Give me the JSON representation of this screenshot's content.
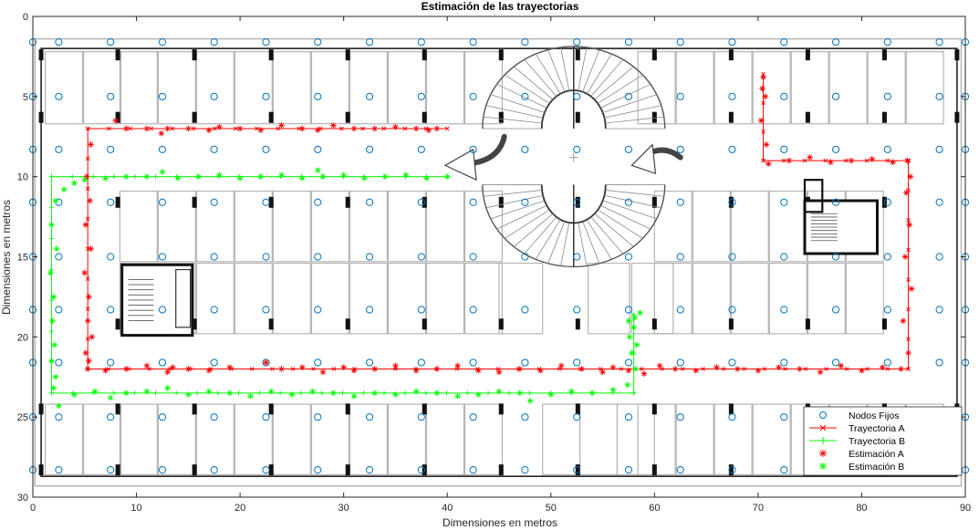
{
  "chart_data": {
    "type": "scatter",
    "title": "Estimación de las trayectorias",
    "xlabel": "Dimensiones en metros",
    "ylabel": "Dimensiones en metros",
    "xlim": [
      0,
      90
    ],
    "ylim": [
      0,
      30
    ],
    "y_reversed": true,
    "x_ticks": [
      0,
      10,
      20,
      30,
      40,
      50,
      60,
      70,
      80,
      90
    ],
    "y_ticks": [
      0,
      5,
      10,
      15,
      20,
      25,
      30
    ],
    "grid": false,
    "legend_position": "bottom-right",
    "background": "floor plan of a parking level",
    "colors": {
      "nodes": "#0072BD",
      "a": "#FF0000",
      "b": "#00FF00",
      "plan": "#000000"
    },
    "fixed_nodes_x": [
      0,
      2.5,
      7.5,
      12.5,
      17.5,
      22.5,
      27.5,
      32.5,
      37.5,
      42.5,
      47.5,
      52.5,
      57.5,
      62.5,
      67.5,
      72.5,
      77.5,
      82.5,
      87.5,
      90
    ],
    "fixed_nodes_y": [
      1.6,
      5,
      8.3,
      11.6,
      15,
      18.3,
      21.6,
      25,
      28.3
    ],
    "series": [
      {
        "name": "Nodos Fijos",
        "marker": "o",
        "line": "none",
        "color": "#0072BD"
      },
      {
        "name": "Trayectoria A",
        "marker": "x",
        "line": "solid",
        "color": "#FF0000",
        "x": [
          40,
          5.3,
          5.3,
          84.5,
          84.5,
          70.5,
          70.5
        ],
        "y": [
          7,
          7,
          22,
          22,
          9,
          9,
          3.6
        ]
      },
      {
        "name": "Trayectoria B",
        "marker": "+",
        "line": "solid",
        "color": "#00FF00",
        "x": [
          40,
          1.8,
          1.8,
          58,
          58
        ],
        "y": [
          10,
          10,
          23.5,
          23.5,
          18.6
        ]
      },
      {
        "name": "Estimación A",
        "marker": "*",
        "line": "none",
        "color": "#FF0000",
        "x": [
          8,
          9,
          11,
          13,
          12.4,
          15,
          17,
          18,
          20,
          22,
          24,
          26,
          27.5,
          29,
          31,
          33,
          35,
          37,
          38.2,
          39,
          5.6,
          5.2,
          5.5,
          5.1,
          5.6,
          5,
          5.4,
          5.3,
          5.7,
          5.1,
          5.4,
          5.3,
          7,
          9,
          11,
          13,
          13.5,
          15,
          17,
          19,
          22.5,
          24,
          26,
          28,
          30,
          31,
          33,
          35,
          37,
          39,
          41,
          43,
          45,
          47,
          49,
          51,
          53,
          55,
          56,
          57.5,
          59,
          60.5,
          62,
          64,
          66,
          68,
          70,
          72,
          74,
          76,
          78,
          80,
          82,
          83.8,
          84.5,
          84,
          84.8,
          84.2,
          84.6,
          84.3,
          84.7,
          84.4,
          83,
          81,
          79,
          77,
          75,
          73,
          71,
          70.8,
          70.3,
          70.7,
          70.4,
          70.5
        ],
        "y": [
          6.5,
          7,
          7,
          7,
          7.3,
          7,
          7.1,
          6.9,
          7,
          7.1,
          6.8,
          7,
          7.1,
          6.8,
          7,
          7,
          6.9,
          7,
          7.1,
          7,
          8,
          10,
          11.5,
          13,
          14.5,
          16,
          17.5,
          19,
          20,
          21,
          21.5,
          22,
          22.1,
          22,
          21.8,
          22.2,
          21.9,
          22,
          22.1,
          21.9,
          21.6,
          22,
          21.9,
          22.2,
          21.9,
          22.1,
          22,
          21.8,
          22.1,
          22,
          21.8,
          22.1,
          22.2,
          22,
          22.1,
          21.8,
          22,
          22.2,
          21.9,
          22.1,
          22.3,
          21.8,
          22,
          22.1,
          21.9,
          22,
          22.1,
          21.9,
          22,
          22.2,
          21.8,
          22.1,
          21.9,
          22,
          21,
          19,
          17,
          15,
          13,
          11,
          10,
          9,
          9.1,
          8.9,
          9,
          9.1,
          8.8,
          9,
          9.2,
          8,
          6.5,
          5,
          4.5,
          3.8
        ],
        "annotations": "scattered estimate markers along Trayectoria A"
      },
      {
        "name": "Estimación B",
        "marker": "*",
        "line": "none",
        "color": "#00FF00",
        "x": [
          40,
          38,
          36,
          34,
          32,
          30,
          28,
          27.5,
          26,
          24,
          22,
          20,
          18,
          16,
          14,
          12.5,
          11,
          9,
          7,
          5,
          4,
          3,
          2.2,
          1.8,
          2.3,
          1.7,
          2,
          1.9,
          2.1,
          1.8,
          2.2,
          2,
          2.5,
          4,
          6,
          7.5,
          9,
          11,
          13,
          15,
          17,
          19,
          21,
          23,
          25,
          27,
          29,
          31,
          33,
          35,
          37,
          39,
          41,
          43,
          45,
          47,
          48,
          50,
          52,
          54,
          56,
          57.4,
          58.2,
          57.8,
          58.3,
          57.6,
          58,
          58.1,
          57.5,
          58.6
        ],
        "y": [
          10,
          10.1,
          9.9,
          10,
          10.1,
          9.9,
          10,
          9.6,
          10.1,
          9.9,
          10,
          10.1,
          9.9,
          10,
          10.1,
          9.7,
          10,
          10,
          10.1,
          10.2,
          10.4,
          10.8,
          11.5,
          13,
          14.5,
          16,
          17.5,
          19,
          20.5,
          21.5,
          22.5,
          23.2,
          24.3,
          23.6,
          23.4,
          23.8,
          23.5,
          23.4,
          23.2,
          23.6,
          23.4,
          23.5,
          23.7,
          23.4,
          23.6,
          23.4,
          23.5,
          23.7,
          23.5,
          23.6,
          23.4,
          23.5,
          23.7,
          23.6,
          23.4,
          23.5,
          24,
          23.6,
          23.4,
          23.5,
          23.3,
          23,
          22,
          21,
          20.5,
          20,
          19.4,
          18.8,
          19,
          18.5
        ]
      }
    ]
  }
}
